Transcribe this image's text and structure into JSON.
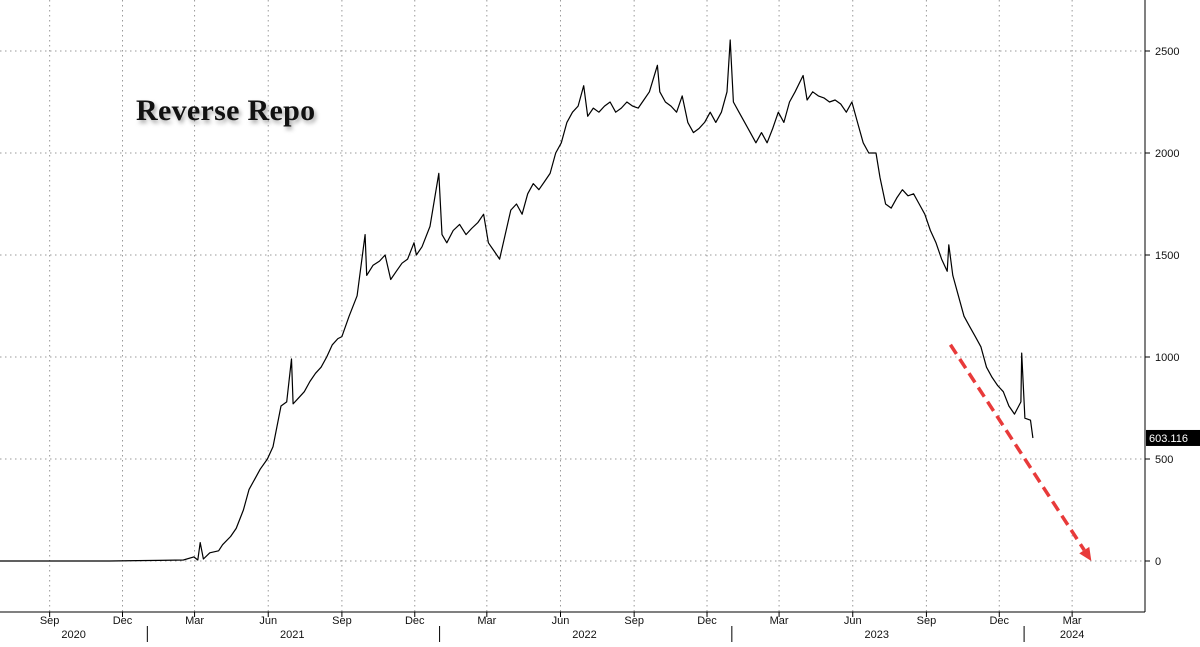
{
  "chart_data": {
    "type": "line",
    "title": "Reverse Repo",
    "xlabel": "",
    "ylabel": "",
    "ylim": [
      -250,
      2750
    ],
    "xlim": [
      "2020-07-01",
      "2024-05-31"
    ],
    "grid": true,
    "y_ticks": [
      0,
      500,
      1000,
      1500,
      2000,
      2500
    ],
    "x_month_ticks": [
      {
        "date": "2020-09-01",
        "label": "Sep"
      },
      {
        "date": "2020-12-01",
        "label": "Dec"
      },
      {
        "date": "2021-03-01",
        "label": "Mar"
      },
      {
        "date": "2021-06-01",
        "label": "Jun"
      },
      {
        "date": "2021-09-01",
        "label": "Sep"
      },
      {
        "date": "2021-12-01",
        "label": "Dec"
      },
      {
        "date": "2022-03-01",
        "label": "Mar"
      },
      {
        "date": "2022-06-01",
        "label": "Jun"
      },
      {
        "date": "2022-09-01",
        "label": "Sep"
      },
      {
        "date": "2022-12-01",
        "label": "Dec"
      },
      {
        "date": "2023-03-01",
        "label": "Mar"
      },
      {
        "date": "2023-06-01",
        "label": "Jun"
      },
      {
        "date": "2023-09-01",
        "label": "Sep"
      },
      {
        "date": "2023-12-01",
        "label": "Dec"
      },
      {
        "date": "2024-03-01",
        "label": "Mar"
      }
    ],
    "x_year_labels": [
      {
        "date": "2020-10-01",
        "label": "2020"
      },
      {
        "date": "2021-07-01",
        "label": "2021"
      },
      {
        "date": "2022-07-01",
        "label": "2022"
      },
      {
        "date": "2023-07-01",
        "label": "2023"
      },
      {
        "date": "2024-03-01",
        "label": "2024"
      }
    ],
    "year_dividers": [
      "2021-01-01",
      "2022-01-01",
      "2023-01-01",
      "2024-01-01"
    ],
    "series": [
      {
        "color": "#000000",
        "points": [
          [
            "2020-07-01",
            0
          ],
          [
            "2020-09-01",
            0
          ],
          [
            "2020-11-15",
            0
          ],
          [
            "2021-01-15",
            3
          ],
          [
            "2021-02-15",
            5
          ],
          [
            "2021-02-28",
            20
          ],
          [
            "2021-03-05",
            5
          ],
          [
            "2021-03-08",
            90
          ],
          [
            "2021-03-12",
            10
          ],
          [
            "2021-03-20",
            40
          ],
          [
            "2021-03-31",
            50
          ],
          [
            "2021-04-05",
            80
          ],
          [
            "2021-04-15",
            120
          ],
          [
            "2021-04-22",
            160
          ],
          [
            "2021-05-01",
            250
          ],
          [
            "2021-05-08",
            350
          ],
          [
            "2021-05-15",
            400
          ],
          [
            "2021-05-22",
            450
          ],
          [
            "2021-05-31",
            500
          ],
          [
            "2021-06-07",
            560
          ],
          [
            "2021-06-14",
            700
          ],
          [
            "2021-06-17",
            760
          ],
          [
            "2021-06-24",
            780
          ],
          [
            "2021-06-30",
            990
          ],
          [
            "2021-07-02",
            770
          ],
          [
            "2021-07-09",
            800
          ],
          [
            "2021-07-16",
            830
          ],
          [
            "2021-07-23",
            880
          ],
          [
            "2021-07-30",
            920
          ],
          [
            "2021-08-06",
            950
          ],
          [
            "2021-08-13",
            1000
          ],
          [
            "2021-08-20",
            1060
          ],
          [
            "2021-08-27",
            1090
          ],
          [
            "2021-09-01",
            1100
          ],
          [
            "2021-09-10",
            1200
          ],
          [
            "2021-09-20",
            1300
          ],
          [
            "2021-09-30",
            1600
          ],
          [
            "2021-10-02",
            1400
          ],
          [
            "2021-10-10",
            1450
          ],
          [
            "2021-10-18",
            1470
          ],
          [
            "2021-10-25",
            1500
          ],
          [
            "2021-11-01",
            1380
          ],
          [
            "2021-11-08",
            1420
          ],
          [
            "2021-11-15",
            1460
          ],
          [
            "2021-11-22",
            1480
          ],
          [
            "2021-11-30",
            1560
          ],
          [
            "2021-12-03",
            1500
          ],
          [
            "2021-12-10",
            1540
          ],
          [
            "2021-12-20",
            1640
          ],
          [
            "2021-12-31",
            1900
          ],
          [
            "2022-01-04",
            1600
          ],
          [
            "2022-01-10",
            1560
          ],
          [
            "2022-01-18",
            1620
          ],
          [
            "2022-01-26",
            1650
          ],
          [
            "2022-02-03",
            1600
          ],
          [
            "2022-02-10",
            1630
          ],
          [
            "2022-02-18",
            1660
          ],
          [
            "2022-02-25",
            1700
          ],
          [
            "2022-03-03",
            1560
          ],
          [
            "2022-03-10",
            1520
          ],
          [
            "2022-03-17",
            1480
          ],
          [
            "2022-03-24",
            1600
          ],
          [
            "2022-03-31",
            1720
          ],
          [
            "2022-04-07",
            1750
          ],
          [
            "2022-04-14",
            1700
          ],
          [
            "2022-04-21",
            1800
          ],
          [
            "2022-04-28",
            1850
          ],
          [
            "2022-05-05",
            1820
          ],
          [
            "2022-05-12",
            1860
          ],
          [
            "2022-05-19",
            1900
          ],
          [
            "2022-05-26",
            2000
          ],
          [
            "2022-06-02",
            2050
          ],
          [
            "2022-06-09",
            2150
          ],
          [
            "2022-06-16",
            2200
          ],
          [
            "2022-06-23",
            2230
          ],
          [
            "2022-06-30",
            2330
          ],
          [
            "2022-07-05",
            2180
          ],
          [
            "2022-07-12",
            2220
          ],
          [
            "2022-07-19",
            2200
          ],
          [
            "2022-07-26",
            2230
          ],
          [
            "2022-08-02",
            2250
          ],
          [
            "2022-08-09",
            2200
          ],
          [
            "2022-08-16",
            2220
          ],
          [
            "2022-08-23",
            2250
          ],
          [
            "2022-08-30",
            2230
          ],
          [
            "2022-09-06",
            2220
          ],
          [
            "2022-09-13",
            2260
          ],
          [
            "2022-09-20",
            2300
          ],
          [
            "2022-09-30",
            2430
          ],
          [
            "2022-10-03",
            2300
          ],
          [
            "2022-10-10",
            2250
          ],
          [
            "2022-10-17",
            2230
          ],
          [
            "2022-10-24",
            2200
          ],
          [
            "2022-10-31",
            2280
          ],
          [
            "2022-11-07",
            2150
          ],
          [
            "2022-11-14",
            2100
          ],
          [
            "2022-11-21",
            2120
          ],
          [
            "2022-11-28",
            2150
          ],
          [
            "2022-12-05",
            2200
          ],
          [
            "2022-12-12",
            2150
          ],
          [
            "2022-12-19",
            2200
          ],
          [
            "2022-12-26",
            2300
          ],
          [
            "2022-12-30",
            2554
          ],
          [
            "2023-01-03",
            2250
          ],
          [
            "2023-01-10",
            2200
          ],
          [
            "2023-01-17",
            2150
          ],
          [
            "2023-01-24",
            2100
          ],
          [
            "2023-01-31",
            2050
          ],
          [
            "2023-02-07",
            2100
          ],
          [
            "2023-02-14",
            2050
          ],
          [
            "2023-02-21",
            2120
          ],
          [
            "2023-02-28",
            2200
          ],
          [
            "2023-03-07",
            2150
          ],
          [
            "2023-03-14",
            2250
          ],
          [
            "2023-03-21",
            2300
          ],
          [
            "2023-03-31",
            2380
          ],
          [
            "2023-04-05",
            2260
          ],
          [
            "2023-04-12",
            2300
          ],
          [
            "2023-04-19",
            2280
          ],
          [
            "2023-04-26",
            2270
          ],
          [
            "2023-05-03",
            2250
          ],
          [
            "2023-05-10",
            2260
          ],
          [
            "2023-05-17",
            2240
          ],
          [
            "2023-05-24",
            2200
          ],
          [
            "2023-05-31",
            2250
          ],
          [
            "2023-06-07",
            2150
          ],
          [
            "2023-06-14",
            2050
          ],
          [
            "2023-06-21",
            2000
          ],
          [
            "2023-06-30",
            2000
          ],
          [
            "2023-07-05",
            1880
          ],
          [
            "2023-07-12",
            1750
          ],
          [
            "2023-07-19",
            1730
          ],
          [
            "2023-07-26",
            1780
          ],
          [
            "2023-08-02",
            1820
          ],
          [
            "2023-08-09",
            1790
          ],
          [
            "2023-08-16",
            1800
          ],
          [
            "2023-08-23",
            1750
          ],
          [
            "2023-08-30",
            1700
          ],
          [
            "2023-09-06",
            1620
          ],
          [
            "2023-09-13",
            1560
          ],
          [
            "2023-09-20",
            1480
          ],
          [
            "2023-09-27",
            1420
          ],
          [
            "2023-09-29",
            1550
          ],
          [
            "2023-10-04",
            1400
          ],
          [
            "2023-10-11",
            1300
          ],
          [
            "2023-10-18",
            1200
          ],
          [
            "2023-10-25",
            1150
          ],
          [
            "2023-11-01",
            1100
          ],
          [
            "2023-11-08",
            1050
          ],
          [
            "2023-11-15",
            950
          ],
          [
            "2023-11-22",
            900
          ],
          [
            "2023-11-29",
            860
          ],
          [
            "2023-12-06",
            830
          ],
          [
            "2023-12-13",
            760
          ],
          [
            "2023-12-20",
            720
          ],
          [
            "2023-12-28",
            780
          ],
          [
            "2023-12-29",
            1019
          ],
          [
            "2024-01-02",
            700
          ],
          [
            "2024-01-09",
            690
          ],
          [
            "2024-01-12",
            603.116
          ]
        ]
      }
    ],
    "last_value_label": "603.116",
    "annotations": [
      {
        "type": "arrow",
        "style": "dashed",
        "color": "#e83a3a",
        "from": [
          "2023-10-01",
          1060
        ],
        "to": [
          "2024-03-25",
          0
        ]
      }
    ]
  }
}
